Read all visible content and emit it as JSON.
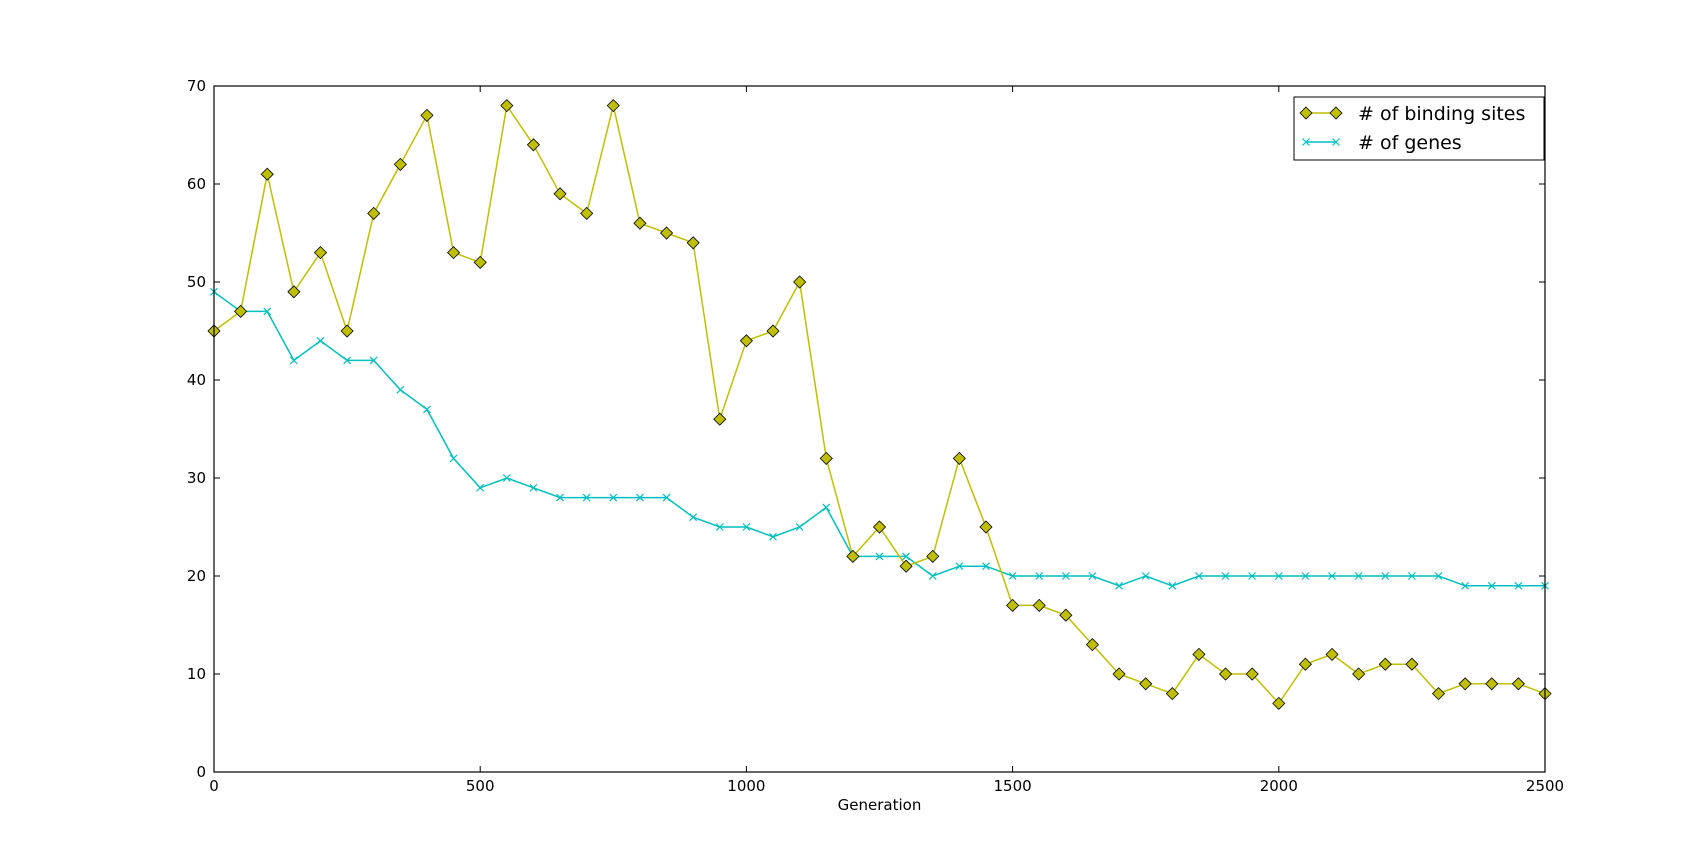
{
  "chart_data": {
    "type": "line",
    "title": "",
    "xlabel": "Generation",
    "ylabel": "",
    "xlim": [
      0,
      2500
    ],
    "ylim": [
      0,
      70
    ],
    "xticks": [
      0,
      500,
      1000,
      1500,
      2000,
      2500
    ],
    "yticks": [
      0,
      10,
      20,
      30,
      40,
      50,
      60,
      70
    ],
    "grid": false,
    "legend_position": "top-right",
    "x": [
      0,
      50,
      100,
      150,
      200,
      250,
      300,
      350,
      400,
      450,
      500,
      550,
      600,
      650,
      700,
      750,
      800,
      850,
      900,
      950,
      1000,
      1050,
      1100,
      1150,
      1200,
      1250,
      1300,
      1350,
      1400,
      1450,
      1500,
      1550,
      1600,
      1650,
      1700,
      1750,
      1800,
      1850,
      1900,
      1950,
      2000,
      2050,
      2100,
      2150,
      2200,
      2250,
      2300,
      2350,
      2400,
      2450,
      2500
    ],
    "series": [
      {
        "name": "# of binding sites",
        "color": "#bfbf00",
        "marker": "diamond",
        "values": [
          45,
          47,
          61,
          49,
          53,
          45,
          57,
          62,
          67,
          53,
          52,
          68,
          64,
          59,
          57,
          68,
          56,
          55,
          54,
          36,
          44,
          45,
          50,
          32,
          22,
          25,
          21,
          22,
          32,
          25,
          17,
          17,
          16,
          13,
          10,
          9,
          8,
          12,
          10,
          10,
          7,
          11,
          12,
          10,
          11,
          11,
          8,
          9,
          9,
          9,
          8
        ]
      },
      {
        "name": "# of genes",
        "color": "#00bfbf",
        "marker": "x",
        "values": [
          49,
          47,
          47,
          42,
          44,
          42,
          42,
          39,
          37,
          32,
          29,
          30,
          29,
          28,
          28,
          28,
          28,
          28,
          26,
          25,
          25,
          24,
          25,
          27,
          22,
          22,
          22,
          20,
          21,
          21,
          20,
          20,
          20,
          20,
          19,
          20,
          19,
          20,
          20,
          20,
          20,
          20,
          20,
          20,
          20,
          20,
          20,
          19,
          19,
          19,
          19
        ]
      }
    ]
  }
}
